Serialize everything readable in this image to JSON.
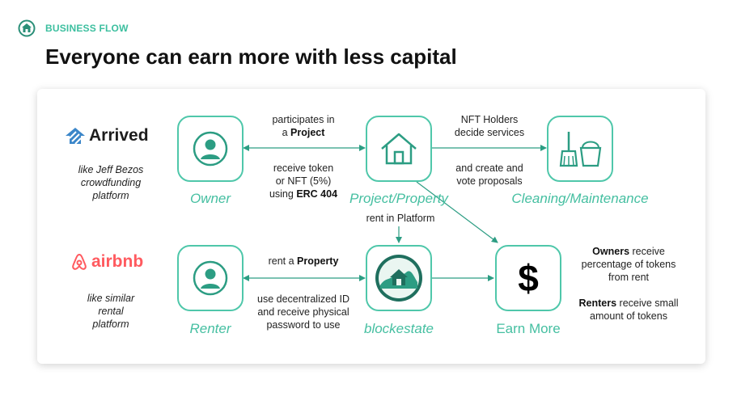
{
  "header": {
    "section_label": "BUSINESS FLOW",
    "title": "Everyone can earn more with less capital"
  },
  "brands": {
    "arrived": {
      "name": "Arrived",
      "note_lines": [
        "like Jeff Bezos",
        "crowdfunding",
        "platform"
      ]
    },
    "airbnb": {
      "name": "airbnb",
      "note_lines": [
        "like similar",
        "rental",
        "platform"
      ]
    }
  },
  "nodes": {
    "owner": {
      "label": "Owner",
      "icon": "user-icon"
    },
    "project": {
      "label": "Project/Property",
      "icon": "house-icon"
    },
    "cleaning": {
      "label": "Cleaning/Maintenance",
      "icon": "broom-bucket-icon"
    },
    "renter": {
      "label": "Renter",
      "icon": "user-icon"
    },
    "blockestate": {
      "label": "blockestate",
      "icon": "blockestate-logo-icon"
    },
    "earn": {
      "label": "Earn More",
      "icon": "dollar-icon",
      "symbol": "$"
    }
  },
  "notes": {
    "participates": {
      "line1": "participates in",
      "line2_prefix": "a ",
      "line2_bold": "Project"
    },
    "receive_token": {
      "line1": "receive token",
      "line2": "or NFT (5%)",
      "line3_prefix": "using ",
      "line3_bold": "ERC 404"
    },
    "nft_holders": {
      "line1": "NFT Holders",
      "line2": "decide services"
    },
    "create_vote": {
      "line1": "and create and",
      "line2": "vote proposals"
    },
    "rent_platform": {
      "text": "rent in Platform"
    },
    "rent_property": {
      "prefix": "rent a ",
      "bold": "Property"
    },
    "decentralized": {
      "line1": "use decentralized ID",
      "line2": "and receive physical",
      "line3": "password to use"
    },
    "owners_receive": {
      "bold": "Owners",
      "line1_rest": " receive",
      "line2": "percentage of tokens",
      "line3": "from rent"
    },
    "renters_receive": {
      "bold": "Renters",
      "line1_rest": " receive small",
      "line2": "amount of tokens"
    }
  },
  "colors": {
    "accent": "#4fc7aa",
    "label": "#45bfa1",
    "airbnb": "#ff5a5f",
    "text": "#111111"
  }
}
